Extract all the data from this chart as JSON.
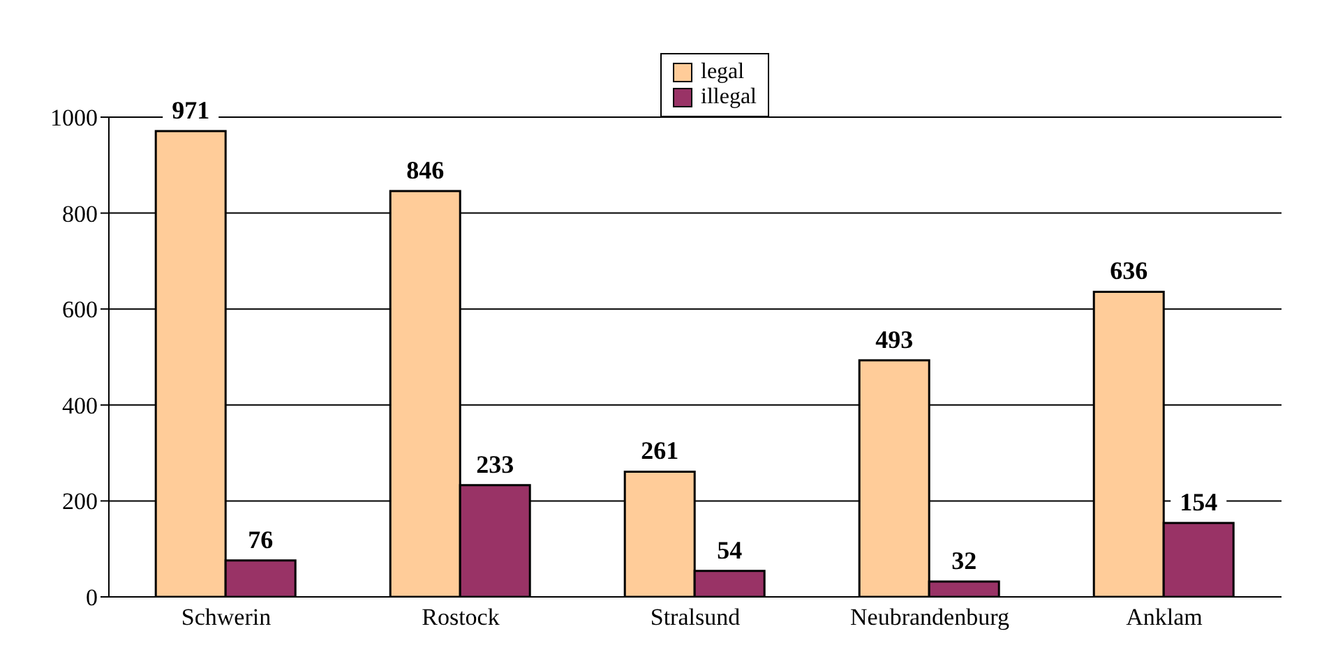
{
  "chart_data": {
    "type": "bar",
    "categories": [
      "Schwerin",
      "Rostock",
      "Stralsund",
      "Neubrandenburg",
      "Anklam"
    ],
    "series": [
      {
        "name": "legal",
        "color": "#ffcc99",
        "values": [
          971,
          846,
          261,
          493,
          636
        ]
      },
      {
        "name": "illegal",
        "color": "#993366",
        "values": [
          76,
          233,
          54,
          32,
          154
        ]
      }
    ],
    "ylim": [
      0,
      1000
    ],
    "yticks": [
      0,
      200,
      400,
      600,
      800,
      1000
    ],
    "grid": "y",
    "legend": "top",
    "data_labels": true
  }
}
